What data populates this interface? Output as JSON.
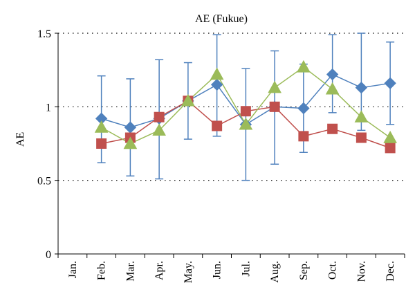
{
  "chart_data": {
    "type": "line",
    "title": "AE (Fukue)",
    "xlabel": "",
    "ylabel": "AE",
    "categories": [
      "Jan.",
      "Feb.",
      "Mar.",
      "Apr.",
      "May.",
      "Jun.",
      "Jul.",
      "Aug.",
      "Sep.",
      "Oct.",
      "Nov.",
      "Dec."
    ],
    "ylim": [
      0,
      1.5
    ],
    "yticks": [
      "0",
      "0.5",
      "1",
      "1.5"
    ],
    "grid": "horizontal dotted",
    "series": [
      {
        "marker": "diamond",
        "color": "#4F81BD",
        "values": [
          null,
          0.92,
          0.86,
          0.92,
          1.04,
          1.15,
          0.88,
          1.0,
          0.99,
          1.22,
          1.13,
          1.16
        ],
        "error_low": [
          null,
          0.62,
          0.53,
          0.51,
          0.78,
          0.8,
          0.5,
          0.61,
          0.69,
          0.96,
          0.84,
          0.88
        ],
        "error_high": [
          null,
          1.21,
          1.19,
          1.32,
          1.3,
          1.49,
          1.26,
          1.38,
          1.29,
          1.49,
          1.5,
          1.44
        ]
      },
      {
        "marker": "square",
        "color": "#C0504D",
        "values": [
          null,
          0.75,
          0.79,
          0.93,
          1.04,
          0.87,
          0.97,
          1.0,
          0.8,
          0.85,
          0.79,
          0.72
        ]
      },
      {
        "marker": "triangle",
        "color": "#9BBB59",
        "values": [
          null,
          0.86,
          0.75,
          0.84,
          1.04,
          1.22,
          0.88,
          1.13,
          1.27,
          1.12,
          0.93,
          0.79
        ]
      }
    ]
  }
}
